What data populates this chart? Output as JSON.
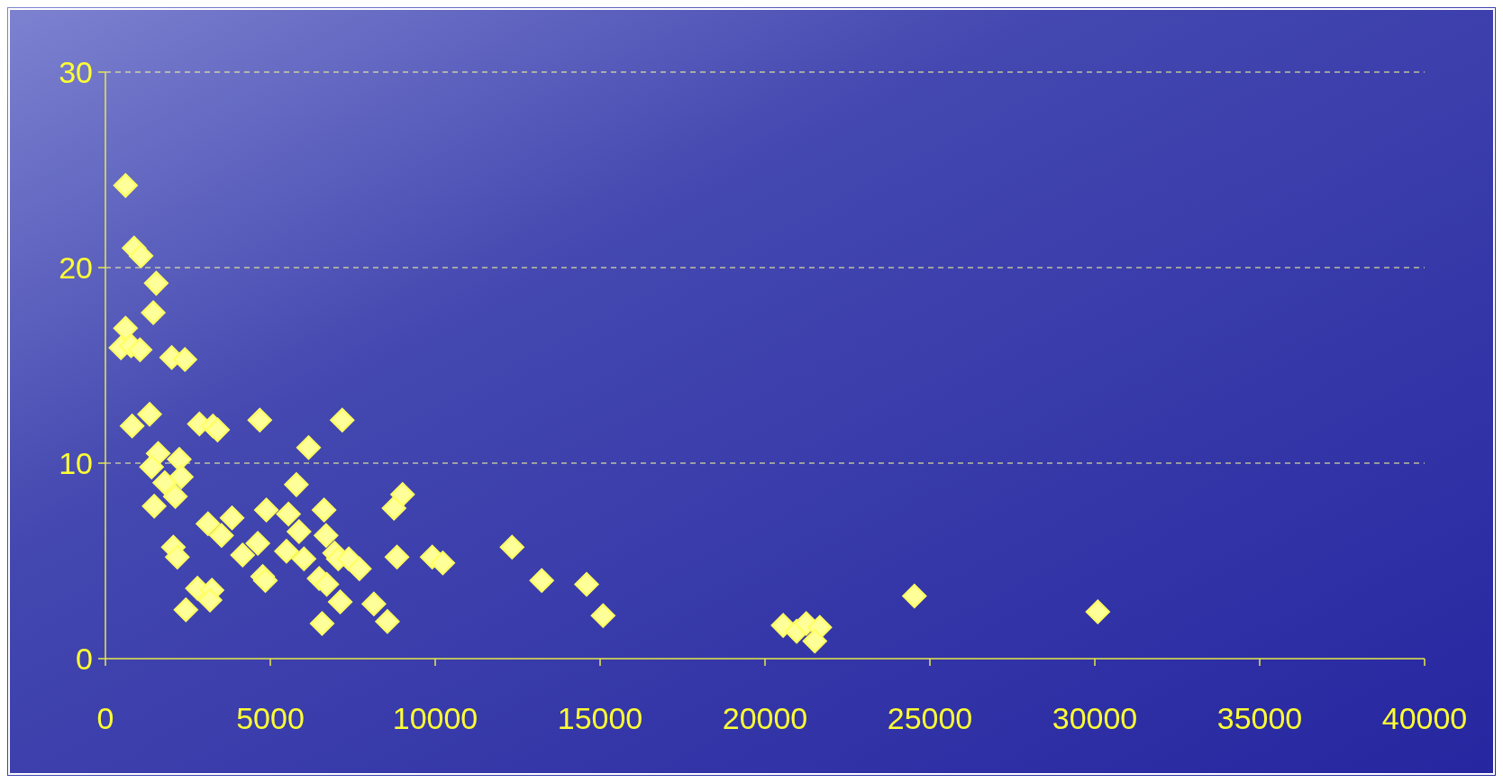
{
  "chart_data": {
    "type": "scatter",
    "marker": "diamond",
    "grid": "y",
    "xlim": [
      0,
      40000
    ],
    "xticks": [
      0,
      5000,
      10000,
      15000,
      20000,
      25000,
      30000,
      35000,
      40000
    ],
    "ylim": [
      0,
      30
    ],
    "yticks": [
      0,
      10,
      20,
      30
    ],
    "series": [
      {
        "color": "#ffff66",
        "x": [
          610,
          870,
          1080,
          1540,
          1450,
          610,
          470,
          780,
          1050,
          2010,
          2410,
          1340,
          810,
          2850,
          3260,
          3400,
          4680,
          7180,
          6160,
          1600,
          1400,
          2240,
          1800,
          2300,
          2120,
          1480,
          5790,
          9010,
          8750,
          4880,
          6630,
          3110,
          3840,
          3520,
          5550,
          5870,
          6690,
          2060,
          2180,
          4160,
          4620,
          5490,
          6020,
          6950,
          7060,
          7380,
          7700,
          8840,
          9910,
          10230,
          12330,
          4770,
          4850,
          6480,
          6710,
          2790,
          3230,
          3170,
          2440,
          7120,
          8140,
          6570,
          8550,
          13230,
          14590,
          15090,
          20550,
          20960,
          21250,
          21660,
          21510,
          24530,
          30090
        ],
        "values": [
          24.2,
          21.0,
          20.6,
          19.2,
          17.7,
          16.9,
          15.9,
          16.0,
          15.8,
          15.4,
          15.3,
          12.5,
          11.9,
          12.0,
          11.9,
          11.7,
          12.2,
          12.2,
          10.8,
          10.5,
          9.8,
          10.2,
          9.0,
          9.3,
          8.3,
          7.8,
          8.9,
          8.4,
          7.7,
          7.6,
          7.6,
          6.9,
          7.2,
          6.3,
          7.4,
          6.5,
          6.3,
          5.7,
          5.2,
          5.3,
          5.9,
          5.5,
          5.1,
          5.4,
          5.1,
          5.1,
          4.6,
          5.2,
          5.2,
          4.9,
          5.7,
          4.2,
          4.0,
          4.1,
          3.8,
          3.6,
          3.5,
          3.0,
          2.5,
          2.9,
          2.8,
          1.8,
          1.9,
          4.0,
          3.8,
          2.2,
          1.7,
          1.4,
          1.8,
          1.6,
          0.9,
          3.2,
          2.4
        ]
      }
    ]
  }
}
